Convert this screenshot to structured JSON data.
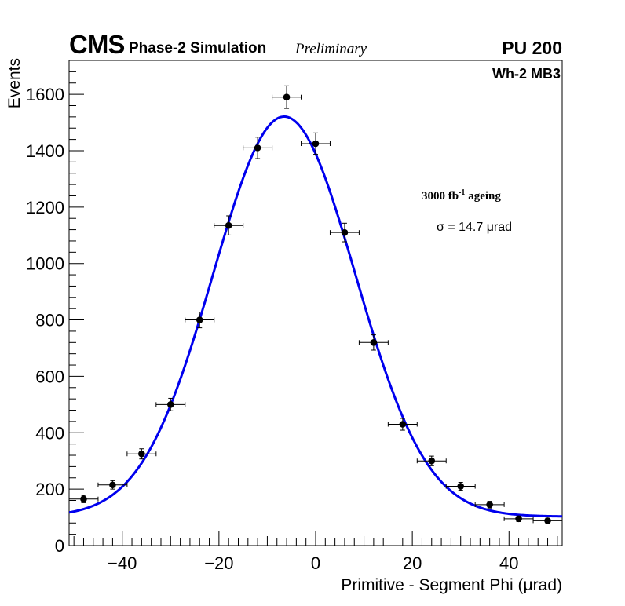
{
  "header": {
    "experiment": "CMS",
    "simulation": "Phase-2 Simulation",
    "status": "Preliminary",
    "pileup": "PU 200"
  },
  "annotations": {
    "station": "Wh-2 MB3",
    "ageing_prefix": "3000 fb",
    "ageing_exp": "-1",
    "ageing_suffix": " ageing",
    "sigma": "σ = 14.7 μrad"
  },
  "colors": {
    "fit": "#0000ee",
    "points": "#000000"
  },
  "chart_data": {
    "type": "scatter",
    "title": "",
    "xlabel": "Primitive - Segment Phi (μrad)",
    "ylabel": "Events",
    "xlim": [
      -51,
      51
    ],
    "ylim": [
      0,
      1720
    ],
    "xticks": [
      -40,
      -20,
      0,
      20,
      40
    ],
    "xtick_labels": [
      "−40",
      "−20",
      "0",
      "20",
      "40"
    ],
    "yticks": [
      0,
      200,
      400,
      600,
      800,
      1000,
      1200,
      1400,
      1600
    ],
    "series": [
      {
        "name": "data",
        "bin_half_width": 3,
        "x": [
          -48,
          -42,
          -36,
          -30,
          -24,
          -18,
          -12,
          -6,
          0,
          6,
          12,
          18,
          24,
          30,
          36,
          42,
          48
        ],
        "y": [
          165,
          215,
          325,
          500,
          800,
          1135,
          1410,
          1590,
          1425,
          1110,
          720,
          430,
          300,
          210,
          145,
          95,
          88
        ],
        "yerr": [
          13,
          15,
          18,
          22,
          28,
          34,
          38,
          40,
          38,
          33,
          27,
          21,
          17,
          14,
          12,
          10,
          9
        ]
      },
      {
        "name": "fit",
        "function": "gaussian",
        "amplitude": 1418,
        "mean": -6.5,
        "sigma": 14.7,
        "baseline": 103
      }
    ]
  }
}
